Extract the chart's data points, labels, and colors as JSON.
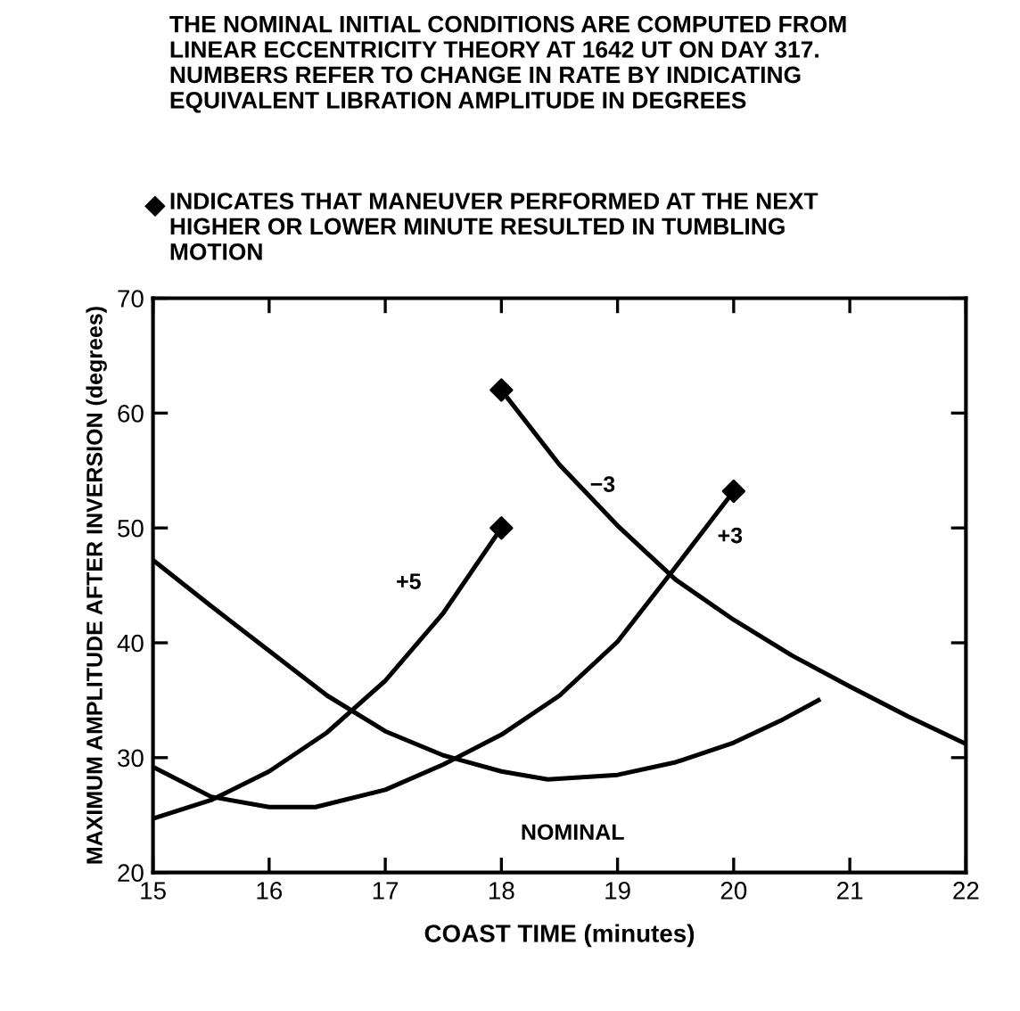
{
  "chart_data": {
    "type": "line",
    "title": "THE NOMINAL INITIAL CONDITIONS ARE COMPUTED FROM\nLINEAR ECCENTRICITY THEORY AT 1642 UT ON DAY 317.\nNUMBERS REFER TO CHANGE IN RATE BY INDICATING\nEQUIVALENT LIBRATION AMPLITUDE IN DEGREES",
    "annotations": [
      "INDICATES THAT MANEUVER PERFORMED AT THE NEXT\nHIGHER OR LOWER MINUTE RESULTED IN TUMBLING\nMOTION"
    ],
    "xlabel": "COAST TIME (minutes)",
    "ylabel": "MAXIMUM AMPLITUDE AFTER INVERSION (degrees)",
    "xlim": [
      15,
      22
    ],
    "xticks": [
      15,
      16,
      17,
      18,
      19,
      20,
      21,
      22
    ],
    "ylim": [
      20,
      70
    ],
    "yticks": [
      20,
      30,
      40,
      50,
      60,
      70
    ],
    "grid": false,
    "legend": false,
    "line_style": "solid",
    "series": [
      {
        "name": "NOMINAL",
        "color": "#000000",
        "marker": "none",
        "x": [
          15,
          15.5,
          16,
          16.5,
          17,
          17.5,
          18,
          18.4,
          19,
          19.5,
          20,
          20.4,
          20.73
        ],
        "values": [
          47.2,
          43.2,
          39.3,
          35.4,
          32.3,
          30.2,
          28.8,
          28.1,
          28.5,
          29.6,
          31.3,
          33.2,
          35.0
        ]
      },
      {
        "name": "+5",
        "color": "#000000",
        "marker": "none",
        "x": [
          15,
          15.5,
          16,
          16.5,
          17,
          17.5,
          18
        ],
        "values": [
          24.7,
          26.3,
          28.8,
          32.2,
          36.7,
          42.6,
          50
        ]
      },
      {
        "name": "+3",
        "color": "#000000",
        "marker": "none",
        "x": [
          15,
          15.5,
          16,
          16.4,
          17,
          17.5,
          18,
          18.5,
          19,
          19.5,
          20
        ],
        "values": [
          29.2,
          26.6,
          25.7,
          25.7,
          27.2,
          29.4,
          32.0,
          35.4,
          40.1,
          46.6,
          53.2
        ]
      },
      {
        "name": "−3",
        "color": "#000000",
        "marker": "none",
        "x": [
          18,
          18.5,
          19,
          19.5,
          20,
          20.5,
          21,
          21.5,
          22
        ],
        "values": [
          62,
          55.5,
          50.2,
          45.5,
          42.0,
          38.9,
          36.2,
          33.6,
          31.2
        ]
      },
      {
        "type": "scatter",
        "color": "#000000",
        "marker": "diamond",
        "x": [
          18,
          20,
          18
        ],
        "values": [
          50,
          53.2,
          62
        ]
      }
    ]
  }
}
